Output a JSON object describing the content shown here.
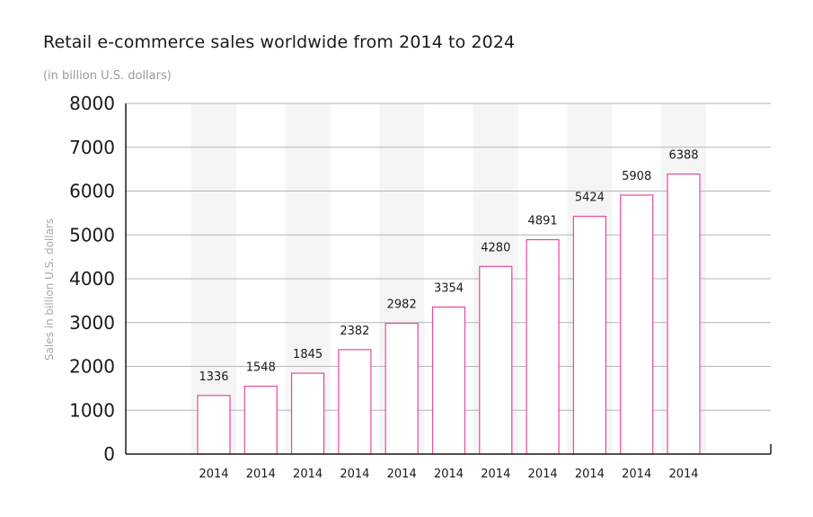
{
  "title": "Retail e-commerce sales worldwide from 2014 to 2024",
  "subtitle": "(in billion U.S. dollars)",
  "colors": {
    "bar_stroke": "#e64a9a",
    "bar_fill": "#ffffff",
    "band": "#f5f5f5",
    "grid": "#b5b5b5",
    "axis": "#1a1a1a"
  },
  "chart_data": {
    "type": "bar",
    "title": "Retail e-commerce sales worldwide from 2014 to 2024",
    "subtitle": "(in billion U.S. dollars)",
    "xlabel": "",
    "ylabel": "Sales in billion U.S. dollars",
    "categories": [
      "2014",
      "2014",
      "2014",
      "2014",
      "2014",
      "2014",
      "2014",
      "2014",
      "2014",
      "2014",
      "2014"
    ],
    "values": [
      1336,
      1548,
      1845,
      2382,
      2982,
      3354,
      4280,
      4891,
      5424,
      5908,
      6388
    ],
    "data_labels": [
      "1336",
      "1548",
      "1845",
      "2382",
      "2982",
      "3354",
      "4280",
      "4891",
      "5424",
      "5908",
      "6388"
    ],
    "y_ticks": [
      "0",
      "1000",
      "2000",
      "3000",
      "4000",
      "5000",
      "6000",
      "7000",
      "8000"
    ],
    "ylim": [
      0,
      8000
    ],
    "grid": true,
    "legend": "none"
  }
}
